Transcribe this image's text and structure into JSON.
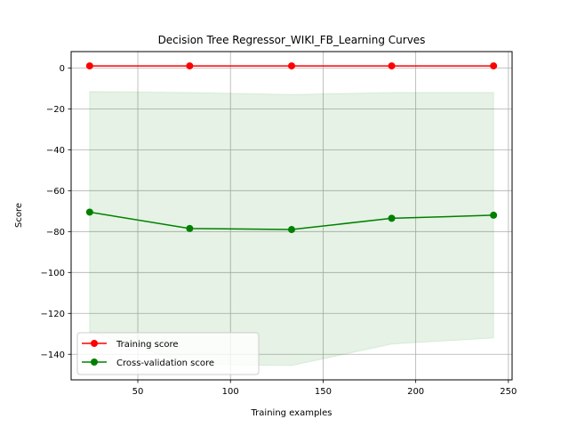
{
  "chart_data": {
    "type": "line",
    "title": "Decision Tree Regressor_WIKI_FB_Learning Curves",
    "xlabel": "Training examples",
    "ylabel": "Score",
    "xlim": [
      14,
      252
    ],
    "ylim": [
      -152.5,
      8
    ],
    "xticks": [
      50,
      100,
      150,
      200,
      250
    ],
    "yticks": [
      0,
      -20,
      -40,
      -60,
      -80,
      -100,
      -120,
      -140
    ],
    "grid": true,
    "legend_position": "lower-left",
    "series": [
      {
        "name": "Training score",
        "color": "#ff0000",
        "x": [
          24,
          78,
          133,
          187,
          242
        ],
        "y": [
          1.0,
          1.0,
          1.0,
          1.0,
          1.0
        ],
        "band_upper": [
          1.0,
          1.0,
          1.0,
          1.0,
          1.0
        ],
        "band_lower": [
          1.0,
          1.0,
          1.0,
          1.0,
          1.0
        ]
      },
      {
        "name": "Cross-validation score",
        "color": "#008000",
        "x": [
          24,
          78,
          133,
          187,
          242
        ],
        "y": [
          -70.5,
          -78.5,
          -79.0,
          -73.5,
          -72.0
        ],
        "band_upper": [
          -11.5,
          -12.0,
          -13.0,
          -12.0,
          -12.0
        ],
        "band_lower": [
          -129.0,
          -145.0,
          -145.5,
          -135.0,
          -132.0
        ]
      }
    ]
  }
}
